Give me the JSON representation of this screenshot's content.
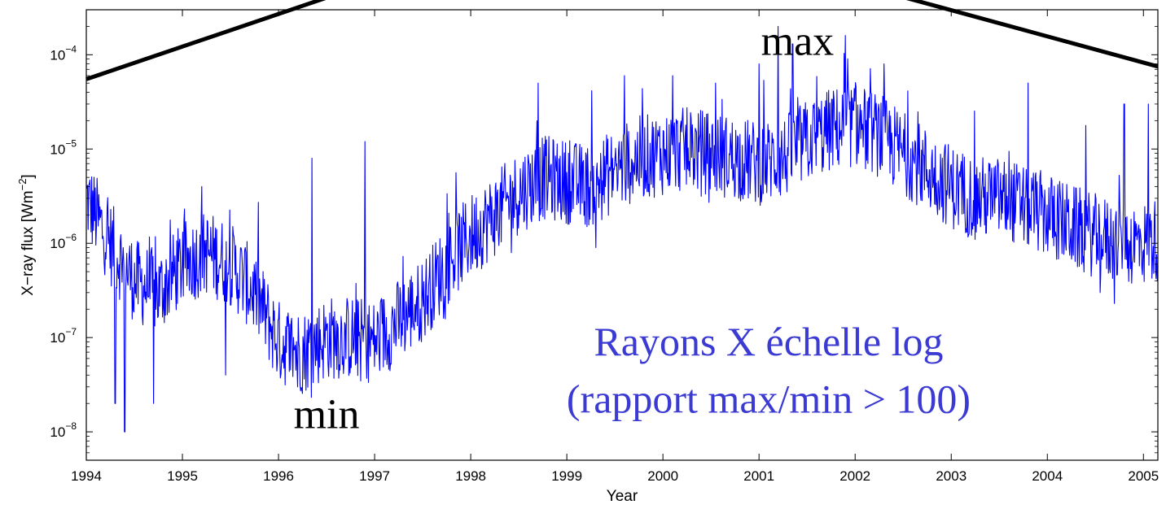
{
  "chart_data": {
    "type": "line",
    "title": "",
    "xlabel": "Year",
    "ylabel": "X−ray flux [Wm",
    "ylabel_sup": "−2",
    "ylabel_close": "]",
    "y_scale": "log",
    "xlim": [
      1994,
      2005.15
    ],
    "ylim": [
      5e-09,
      0.0003
    ],
    "x_ticks": [
      1994,
      1995,
      1996,
      1997,
      1998,
      1999,
      2000,
      2001,
      2002,
      2003,
      2004,
      2005
    ],
    "x_tick_labels": [
      "1994",
      "1995",
      "1996",
      "1997",
      "1998",
      "1999",
      "2000",
      "2001",
      "2002",
      "2003",
      "2004",
      "2005"
    ],
    "y_ticks": [
      1e-08,
      1e-07,
      1e-06,
      1e-05,
      0.0001
    ],
    "y_tick_labels": [
      {
        "base": "10",
        "exp": "−8"
      },
      {
        "base": "10",
        "exp": "−7"
      },
      {
        "base": "10",
        "exp": "−6"
      },
      {
        "base": "10",
        "exp": "−5"
      },
      {
        "base": "10",
        "exp": "−4"
      }
    ],
    "grid": false,
    "series": [
      {
        "color": "#0000ff",
        "x": [
          1994.0,
          1994.25,
          1994.5,
          1994.75,
          1995.0,
          1995.25,
          1995.5,
          1995.75,
          1996.0,
          1996.25,
          1996.5,
          1996.75,
          1997.0,
          1997.25,
          1997.5,
          1997.75,
          1998.0,
          1998.25,
          1998.5,
          1998.75,
          1999.0,
          1999.25,
          1999.5,
          1999.75,
          2000.0,
          2000.25,
          2000.5,
          2000.75,
          2001.0,
          2001.25,
          2001.5,
          2001.75,
          2002.0,
          2002.25,
          2002.5,
          2002.75,
          2003.0,
          2003.25,
          2003.5,
          2003.75,
          2004.0,
          2004.25,
          2004.5,
          2004.75,
          2005.0,
          2005.15
        ],
        "y": [
          3e-06,
          1e-06,
          4e-07,
          3e-07,
          6e-07,
          8e-07,
          6e-07,
          3e-07,
          9e-08,
          7e-08,
          1e-07,
          1e-07,
          9e-08,
          1.5e-07,
          2.5e-07,
          6e-07,
          1.2e-06,
          2e-06,
          3.5e-06,
          5e-06,
          4.5e-06,
          4e-06,
          6e-06,
          8e-06,
          9e-06,
          1e-05,
          9e-06,
          8e-06,
          7e-06,
          8e-06,
          1.2e-05,
          1.6e-05,
          1.8e-05,
          1.4e-05,
          9e-06,
          6e-06,
          4e-06,
          3e-06,
          3e-06,
          2.5e-06,
          2e-06,
          1.5e-06,
          1.2e-06,
          1e-06,
          1e-06,
          1.1e-06
        ],
        "spikes": [
          {
            "x": 1994.4,
            "y": 1e-08
          },
          {
            "x": 1994.3,
            "y": 2e-08
          },
          {
            "x": 1994.7,
            "y": 2e-08
          },
          {
            "x": 1995.2,
            "y": 4e-06
          },
          {
            "x": 1995.45,
            "y": 4e-08
          },
          {
            "x": 1996.2,
            "y": 3e-08
          },
          {
            "x": 1996.35,
            "y": 8e-06
          },
          {
            "x": 1996.9,
            "y": 1.2e-05
          },
          {
            "x": 1998.7,
            "y": 5e-05
          },
          {
            "x": 1999.3,
            "y": 9e-07
          },
          {
            "x": 1999.6,
            "y": 6e-05
          },
          {
            "x": 2000.1,
            "y": 6e-05
          },
          {
            "x": 2000.55,
            "y": 5e-05
          },
          {
            "x": 2001.0,
            "y": 8e-05
          },
          {
            "x": 2001.2,
            "y": 0.0002
          },
          {
            "x": 2001.35,
            "y": 0.00013
          },
          {
            "x": 2001.9,
            "y": 0.00016
          },
          {
            "x": 2002.3,
            "y": 8e-05
          },
          {
            "x": 2003.8,
            "y": 5e-05
          },
          {
            "x": 2004.55,
            "y": 3e-07
          },
          {
            "x": 2004.8,
            "y": 3e-05
          },
          {
            "x": 2005.05,
            "y": 3e-05
          }
        ]
      }
    ],
    "trend_line": {
      "color": "#000000",
      "x": [
        1994.0,
        1997.0,
        2001.9,
        2005.15
      ],
      "y": [
        5.5e-05,
        0.0006,
        0.0006,
        7.5e-05
      ]
    },
    "annotations": [
      {
        "text": "max",
        "x": 2001.4,
        "y": 0.0001,
        "color": "#000000"
      },
      {
        "text": "min",
        "x": 1996.5,
        "y": 1.1e-08,
        "color": "#000000"
      },
      {
        "text": "Rayons X échelle log",
        "x": 2001.1,
        "y": 6.5e-08,
        "color": "#3b3bd4"
      },
      {
        "text": "(rapport max/min > 100)",
        "x": 2001.1,
        "y": 1.6e-08,
        "color": "#3b3bd4"
      }
    ]
  }
}
